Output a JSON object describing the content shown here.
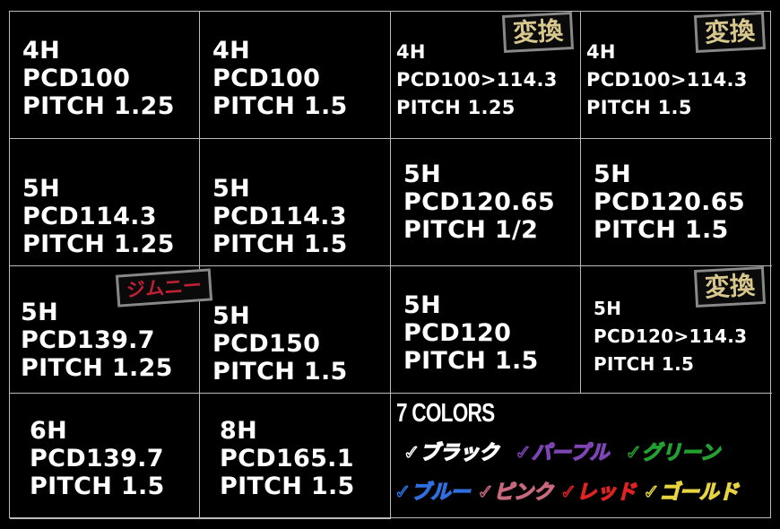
{
  "cells": [
    {
      "lines": [
        "4H",
        "PCD100",
        "PITCH 1.25"
      ]
    },
    {
      "lines": [
        "4H",
        "PCD100",
        "PITCH 1.5"
      ]
    },
    {
      "lines": [
        "4H",
        "PCD100>114.3",
        "PITCH 1.25"
      ],
      "badge": "変換"
    },
    {
      "lines": [
        "4H",
        "PCD100>114.3",
        "PITCH 1.5"
      ],
      "badge": "変換"
    },
    {
      "lines": [
        "5H",
        "PCD114.3",
        "PITCH 1.25"
      ]
    },
    {
      "lines": [
        "5H",
        "PCD114.3",
        "PITCH 1.5"
      ]
    },
    {
      "lines": [
        "5H",
        "PCD120.65",
        "PITCH 1/2"
      ]
    },
    {
      "lines": [
        "5H",
        "PCD120.65",
        "PITCH 1.5"
      ]
    },
    {
      "lines": [
        "5H",
        "PCD139.7",
        "PITCH 1.25"
      ],
      "badge": "ジムニー"
    },
    {
      "lines": [
        "5H",
        "PCD150",
        "PITCH 1.5"
      ]
    },
    {
      "lines": [
        "5H",
        "PCD120",
        "PITCH 1.5"
      ]
    },
    {
      "lines": [
        "5H",
        "PCD120>114.3",
        "PITCH 1.5"
      ],
      "badge": "変換"
    },
    {
      "lines": [
        "6H",
        "PCD139.7",
        "PITCH 1.5"
      ]
    },
    {
      "lines": [
        "8H",
        "PCD165.1",
        "PITCH 1.5"
      ]
    }
  ],
  "colors_panel": {
    "title": "7 COLORS",
    "items": [
      {
        "label": "✓ブラック",
        "color": "#ffffff"
      },
      {
        "label": "✓パープル",
        "color": "#7d45b5"
      },
      {
        "label": "✓グリーン",
        "color": "#23a030"
      },
      {
        "label": "✓ブルー",
        "color": "#2f6fe0"
      },
      {
        "label": "✓ピンク",
        "color": "#c86a7e"
      },
      {
        "label": "✓レッド",
        "color": "#e02222"
      },
      {
        "label": "✓ゴールド",
        "color": "#e8d440"
      }
    ]
  }
}
